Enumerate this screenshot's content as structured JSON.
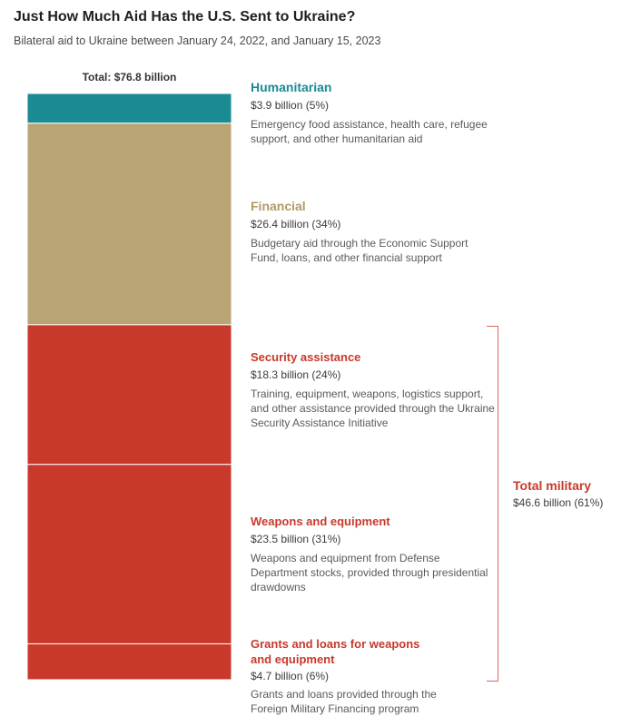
{
  "title": "Just How Much Aid Has the U.S. Sent to Ukraine?",
  "subtitle": "Bilateral aid to Ukraine between January 24, 2022, and January 15, 2023",
  "total_label": "Total: $76.8 billion",
  "colors": {
    "humanitarian": "#1a8a93",
    "financial": "#b9a574",
    "military": "#c8392b"
  },
  "segments": [
    {
      "name": "Humanitarian",
      "value_text": "$3.9 billion (5%)",
      "desc": "Emergency food assistance, health care, refugee support, and other humanitarian aid"
    },
    {
      "name": "Financial",
      "value_text": "$26.4 billion (34%)",
      "desc": "Budgetary aid through the Economic Support Fund, loans, and other financial support"
    },
    {
      "name": "Security assistance",
      "value_text": "$18.3 billion (24%)",
      "desc": "Training, equipment, weapons, logistics support, and other assistance provided through the Ukraine Security Assistance Initiative"
    },
    {
      "name": "Weapons and equipment",
      "value_text": "$23.5 billion (31%)",
      "desc": "Weapons and equipment from Defense Department stocks, provided through presidential drawdowns"
    },
    {
      "name": "Grants and loans for weapons and equipment",
      "value_text": "$4.7 billion (6%)",
      "desc": "Grants and loans provided through the Foreign Military Financing program"
    }
  ],
  "military_total": {
    "name": "Total military",
    "value_text": "$46.6 billion (61%)"
  },
  "chart_data": {
    "type": "bar",
    "stacked": true,
    "unit": "billion",
    "total": 76.8,
    "categories": [
      "Humanitarian",
      "Financial",
      "Security assistance",
      "Weapons and equipment",
      "Grants and loans for weapons and equipment"
    ],
    "values": [
      3.9,
      26.4,
      18.3,
      23.5,
      4.7
    ],
    "percents": [
      5,
      34,
      24,
      31,
      6
    ],
    "groups": [
      {
        "name": "Total military",
        "members": [
          2,
          3,
          4
        ],
        "value": 46.6,
        "percent": 61
      }
    ],
    "segment_colors": [
      "#1a8a93",
      "#b9a574",
      "#c8392b",
      "#c8392b",
      "#c8392b"
    ]
  }
}
